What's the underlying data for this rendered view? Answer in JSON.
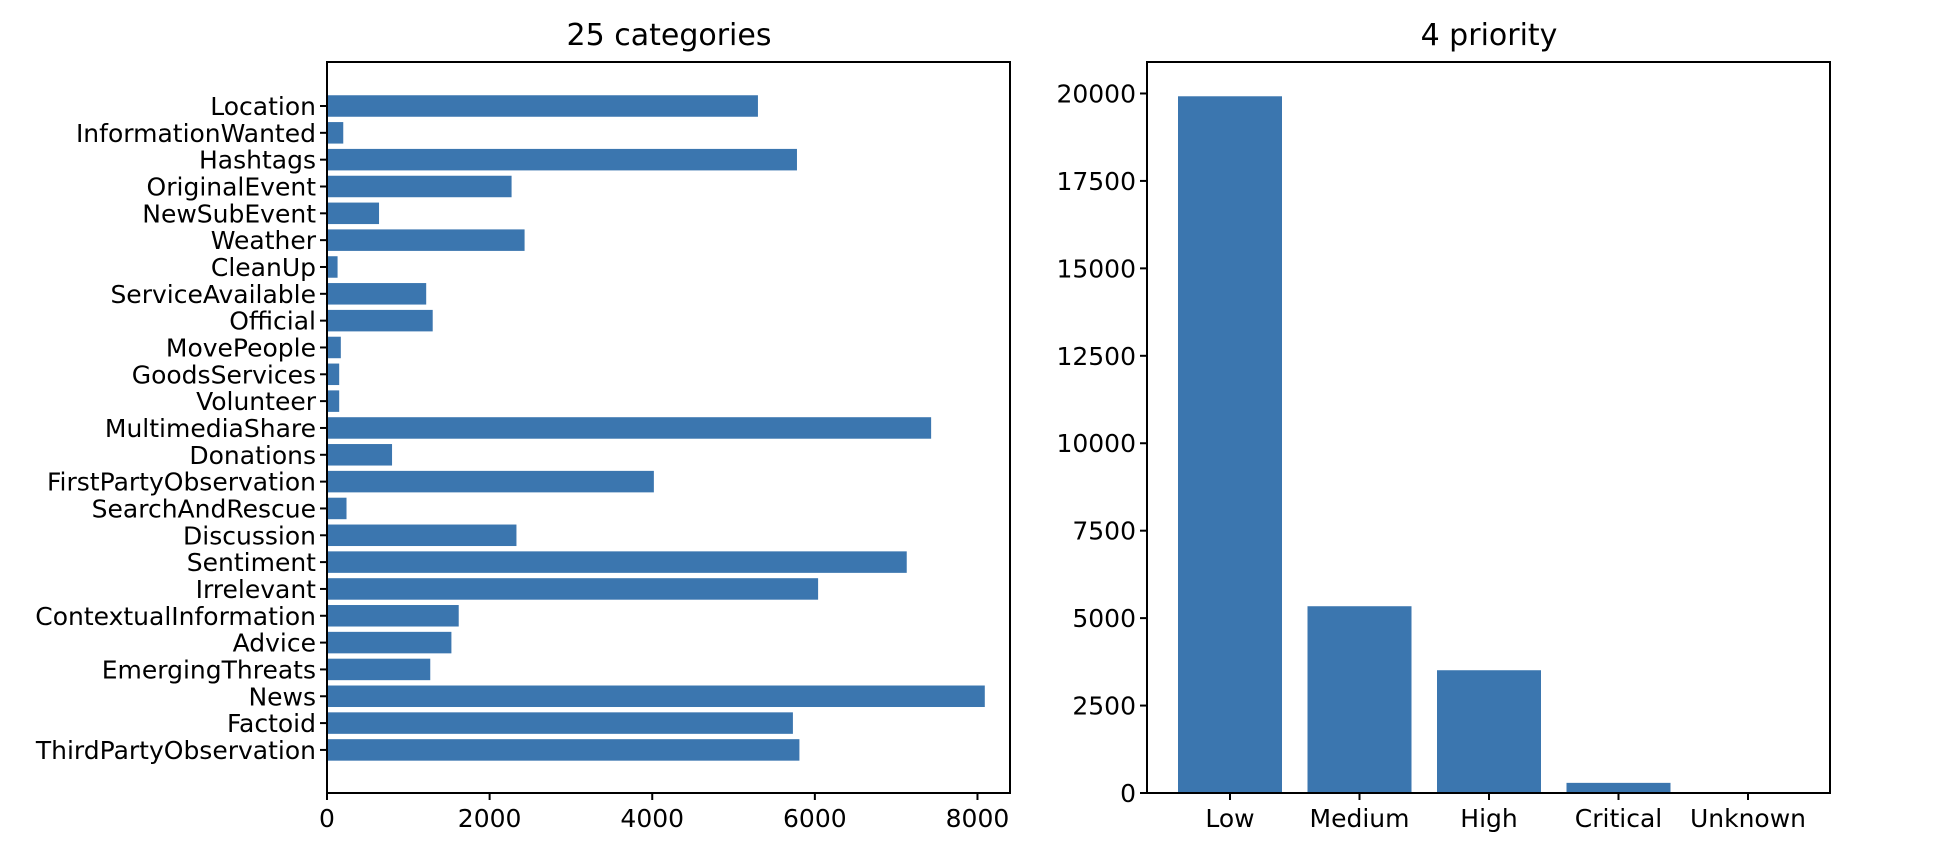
{
  "chart_data": [
    {
      "type": "bar",
      "orientation": "horizontal",
      "title": "25 categories",
      "xlabel": "",
      "ylabel": "",
      "xlim": [
        0,
        8400
      ],
      "xticks": [
        0,
        2000,
        4000,
        6000,
        8000
      ],
      "xtick_labels": [
        "0",
        "2000",
        "4000",
        "6000",
        "8000"
      ],
      "grid": false,
      "bar_color": "#3b76af",
      "categories": [
        "Location",
        "InformationWanted",
        "Hashtags",
        "OriginalEvent",
        "NewSubEvent",
        "Weather",
        "CleanUp",
        "ServiceAvailable",
        "Official",
        "MovePeople",
        "GoodsServices",
        "Volunteer",
        "MultimediaShare",
        "Donations",
        "FirstPartyObservation",
        "SearchAndRescue",
        "Discussion",
        "Sentiment",
        "Irrelevant",
        "ContextualInformation",
        "Advice",
        "EmergingThreats",
        "News",
        "Factoid",
        "ThirdPartyObservation"
      ],
      "values": [
        5300,
        200,
        5780,
        2270,
        640,
        2430,
        130,
        1220,
        1300,
        170,
        150,
        150,
        7430,
        800,
        4020,
        240,
        2330,
        7130,
        6040,
        1620,
        1530,
        1270,
        8090,
        5730,
        5810
      ]
    },
    {
      "type": "bar",
      "orientation": "vertical",
      "title": "4 priority",
      "xlabel": "",
      "ylabel": "",
      "ylim": [
        0,
        20900
      ],
      "yticks": [
        0,
        2500,
        5000,
        7500,
        10000,
        12500,
        15000,
        17500,
        20000
      ],
      "ytick_labels": [
        "0",
        "2500",
        "5000",
        "7500",
        "10000",
        "12500",
        "15000",
        "17500",
        "20000"
      ],
      "grid": false,
      "bar_color": "#3b76af",
      "categories": [
        "Low",
        "Medium",
        "High",
        "Critical",
        "Unknown"
      ],
      "values": [
        19920,
        5340,
        3510,
        290,
        0
      ]
    }
  ]
}
